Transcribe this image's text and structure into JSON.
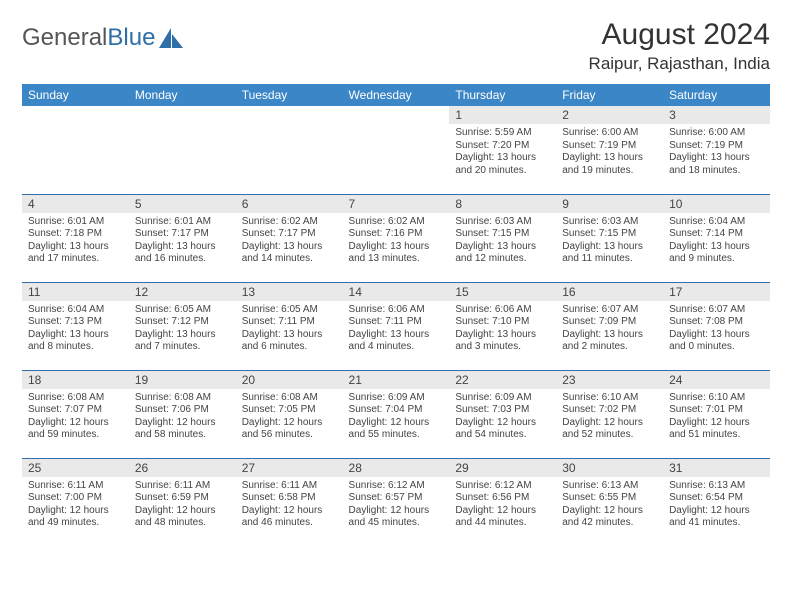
{
  "logo": {
    "text_general": "General",
    "text_blue": "Blue"
  },
  "title": "August 2024",
  "location": "Raipur, Rajasthan, India",
  "day_headers": [
    "Sunday",
    "Monday",
    "Tuesday",
    "Wednesday",
    "Thursday",
    "Friday",
    "Saturday"
  ],
  "header_bg": "#3b86c7",
  "daynum_bg": "#e9e9e9",
  "border_color": "#2f6fa8",
  "weeks": [
    [
      {
        "num": "",
        "sunrise": "",
        "sunset": "",
        "daylight": ""
      },
      {
        "num": "",
        "sunrise": "",
        "sunset": "",
        "daylight": ""
      },
      {
        "num": "",
        "sunrise": "",
        "sunset": "",
        "daylight": ""
      },
      {
        "num": "",
        "sunrise": "",
        "sunset": "",
        "daylight": ""
      },
      {
        "num": "1",
        "sunrise": "Sunrise: 5:59 AM",
        "sunset": "Sunset: 7:20 PM",
        "daylight": "Daylight: 13 hours and 20 minutes."
      },
      {
        "num": "2",
        "sunrise": "Sunrise: 6:00 AM",
        "sunset": "Sunset: 7:19 PM",
        "daylight": "Daylight: 13 hours and 19 minutes."
      },
      {
        "num": "3",
        "sunrise": "Sunrise: 6:00 AM",
        "sunset": "Sunset: 7:19 PM",
        "daylight": "Daylight: 13 hours and 18 minutes."
      }
    ],
    [
      {
        "num": "4",
        "sunrise": "Sunrise: 6:01 AM",
        "sunset": "Sunset: 7:18 PM",
        "daylight": "Daylight: 13 hours and 17 minutes."
      },
      {
        "num": "5",
        "sunrise": "Sunrise: 6:01 AM",
        "sunset": "Sunset: 7:17 PM",
        "daylight": "Daylight: 13 hours and 16 minutes."
      },
      {
        "num": "6",
        "sunrise": "Sunrise: 6:02 AM",
        "sunset": "Sunset: 7:17 PM",
        "daylight": "Daylight: 13 hours and 14 minutes."
      },
      {
        "num": "7",
        "sunrise": "Sunrise: 6:02 AM",
        "sunset": "Sunset: 7:16 PM",
        "daylight": "Daylight: 13 hours and 13 minutes."
      },
      {
        "num": "8",
        "sunrise": "Sunrise: 6:03 AM",
        "sunset": "Sunset: 7:15 PM",
        "daylight": "Daylight: 13 hours and 12 minutes."
      },
      {
        "num": "9",
        "sunrise": "Sunrise: 6:03 AM",
        "sunset": "Sunset: 7:15 PM",
        "daylight": "Daylight: 13 hours and 11 minutes."
      },
      {
        "num": "10",
        "sunrise": "Sunrise: 6:04 AM",
        "sunset": "Sunset: 7:14 PM",
        "daylight": "Daylight: 13 hours and 9 minutes."
      }
    ],
    [
      {
        "num": "11",
        "sunrise": "Sunrise: 6:04 AM",
        "sunset": "Sunset: 7:13 PM",
        "daylight": "Daylight: 13 hours and 8 minutes."
      },
      {
        "num": "12",
        "sunrise": "Sunrise: 6:05 AM",
        "sunset": "Sunset: 7:12 PM",
        "daylight": "Daylight: 13 hours and 7 minutes."
      },
      {
        "num": "13",
        "sunrise": "Sunrise: 6:05 AM",
        "sunset": "Sunset: 7:11 PM",
        "daylight": "Daylight: 13 hours and 6 minutes."
      },
      {
        "num": "14",
        "sunrise": "Sunrise: 6:06 AM",
        "sunset": "Sunset: 7:11 PM",
        "daylight": "Daylight: 13 hours and 4 minutes."
      },
      {
        "num": "15",
        "sunrise": "Sunrise: 6:06 AM",
        "sunset": "Sunset: 7:10 PM",
        "daylight": "Daylight: 13 hours and 3 minutes."
      },
      {
        "num": "16",
        "sunrise": "Sunrise: 6:07 AM",
        "sunset": "Sunset: 7:09 PM",
        "daylight": "Daylight: 13 hours and 2 minutes."
      },
      {
        "num": "17",
        "sunrise": "Sunrise: 6:07 AM",
        "sunset": "Sunset: 7:08 PM",
        "daylight": "Daylight: 13 hours and 0 minutes."
      }
    ],
    [
      {
        "num": "18",
        "sunrise": "Sunrise: 6:08 AM",
        "sunset": "Sunset: 7:07 PM",
        "daylight": "Daylight: 12 hours and 59 minutes."
      },
      {
        "num": "19",
        "sunrise": "Sunrise: 6:08 AM",
        "sunset": "Sunset: 7:06 PM",
        "daylight": "Daylight: 12 hours and 58 minutes."
      },
      {
        "num": "20",
        "sunrise": "Sunrise: 6:08 AM",
        "sunset": "Sunset: 7:05 PM",
        "daylight": "Daylight: 12 hours and 56 minutes."
      },
      {
        "num": "21",
        "sunrise": "Sunrise: 6:09 AM",
        "sunset": "Sunset: 7:04 PM",
        "daylight": "Daylight: 12 hours and 55 minutes."
      },
      {
        "num": "22",
        "sunrise": "Sunrise: 6:09 AM",
        "sunset": "Sunset: 7:03 PM",
        "daylight": "Daylight: 12 hours and 54 minutes."
      },
      {
        "num": "23",
        "sunrise": "Sunrise: 6:10 AM",
        "sunset": "Sunset: 7:02 PM",
        "daylight": "Daylight: 12 hours and 52 minutes."
      },
      {
        "num": "24",
        "sunrise": "Sunrise: 6:10 AM",
        "sunset": "Sunset: 7:01 PM",
        "daylight": "Daylight: 12 hours and 51 minutes."
      }
    ],
    [
      {
        "num": "25",
        "sunrise": "Sunrise: 6:11 AM",
        "sunset": "Sunset: 7:00 PM",
        "daylight": "Daylight: 12 hours and 49 minutes."
      },
      {
        "num": "26",
        "sunrise": "Sunrise: 6:11 AM",
        "sunset": "Sunset: 6:59 PM",
        "daylight": "Daylight: 12 hours and 48 minutes."
      },
      {
        "num": "27",
        "sunrise": "Sunrise: 6:11 AM",
        "sunset": "Sunset: 6:58 PM",
        "daylight": "Daylight: 12 hours and 46 minutes."
      },
      {
        "num": "28",
        "sunrise": "Sunrise: 6:12 AM",
        "sunset": "Sunset: 6:57 PM",
        "daylight": "Daylight: 12 hours and 45 minutes."
      },
      {
        "num": "29",
        "sunrise": "Sunrise: 6:12 AM",
        "sunset": "Sunset: 6:56 PM",
        "daylight": "Daylight: 12 hours and 44 minutes."
      },
      {
        "num": "30",
        "sunrise": "Sunrise: 6:13 AM",
        "sunset": "Sunset: 6:55 PM",
        "daylight": "Daylight: 12 hours and 42 minutes."
      },
      {
        "num": "31",
        "sunrise": "Sunrise: 6:13 AM",
        "sunset": "Sunset: 6:54 PM",
        "daylight": "Daylight: 12 hours and 41 minutes."
      }
    ]
  ]
}
